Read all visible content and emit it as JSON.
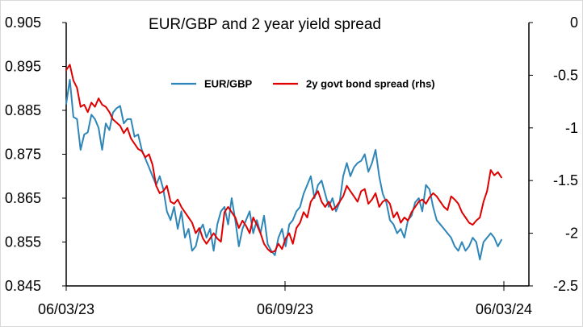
{
  "chart_data": {
    "type": "line",
    "title": "EUR/GBP and 2 year yield spread",
    "x_tick_labels": [
      "06/03/23",
      "06/09/23",
      "06/03/24"
    ],
    "x_range": [
      "06/03/23",
      "06/03/24"
    ],
    "y_left": {
      "range": [
        0.845,
        0.905
      ],
      "ticks": [
        "0.905",
        "0.895",
        "0.885",
        "0.875",
        "0.865",
        "0.855",
        "0.845"
      ]
    },
    "y_right": {
      "range": [
        -2.5,
        0
      ],
      "ticks": [
        "0",
        "-0.5",
        "-1",
        "-1.5",
        "-2",
        "-2.5"
      ]
    },
    "grid": false,
    "legend_position": "top",
    "series": [
      {
        "name": "EUR/GBP",
        "axis": "left",
        "color": "#2E86B8",
        "x": [
          0,
          3,
          6,
          9,
          12,
          15,
          18,
          21,
          24,
          27,
          30,
          33,
          36,
          39,
          42,
          45,
          48,
          51,
          54,
          57,
          60,
          63,
          66,
          69,
          72,
          75,
          78,
          81,
          84,
          87,
          90,
          93,
          96,
          99,
          102,
          105,
          108,
          111,
          114,
          117,
          120,
          123,
          126,
          129,
          132,
          135,
          138,
          141,
          144,
          147,
          150,
          153,
          156,
          159,
          162,
          165,
          168,
          171,
          174,
          177,
          180,
          183,
          186,
          189,
          192,
          195,
          198,
          201,
          204,
          207,
          210,
          213,
          216,
          219,
          222,
          225,
          228,
          231,
          234,
          237,
          240,
          243,
          246,
          249,
          252,
          255,
          258,
          261,
          264,
          267,
          270,
          273,
          276,
          279,
          282,
          285,
          288,
          291,
          294,
          297,
          300,
          303,
          306,
          309,
          312,
          315,
          318,
          321,
          324,
          327,
          330,
          333,
          336,
          339,
          342,
          345,
          348,
          351,
          354,
          357,
          360,
          363
        ],
        "values": [
          0.8865,
          0.892,
          0.8835,
          0.883,
          0.876,
          0.8795,
          0.88,
          0.884,
          0.883,
          0.881,
          0.876,
          0.882,
          0.8805,
          0.8845,
          0.8855,
          0.886,
          0.882,
          0.883,
          0.883,
          0.879,
          0.8795,
          0.876,
          0.874,
          0.872,
          0.87,
          0.868,
          0.87,
          0.867,
          0.862,
          0.86,
          0.863,
          0.858,
          0.862,
          0.856,
          0.858,
          0.853,
          0.854,
          0.8575,
          0.859,
          0.856,
          0.858,
          0.853,
          0.859,
          0.862,
          0.863,
          0.859,
          0.865,
          0.86,
          0.854,
          0.858,
          0.86,
          0.862,
          0.857,
          0.86,
          0.857,
          0.861,
          0.8545,
          0.853,
          0.852,
          0.856,
          0.858,
          0.854,
          0.859,
          0.86,
          0.862,
          0.863,
          0.866,
          0.868,
          0.87,
          0.865,
          0.868,
          0.869,
          0.866,
          0.863,
          0.865,
          0.862,
          0.864,
          0.87,
          0.873,
          0.87,
          0.872,
          0.873,
          0.8735,
          0.875,
          0.871,
          0.873,
          0.876,
          0.87,
          0.866,
          0.864,
          0.86,
          0.859,
          0.857,
          0.858,
          0.856,
          0.86,
          0.861,
          0.864,
          0.865,
          0.862,
          0.868,
          0.867,
          0.863,
          0.86,
          0.859,
          0.858,
          0.857,
          0.856,
          0.854,
          0.853,
          0.855,
          0.853,
          0.854,
          0.856,
          0.855,
          0.851,
          0.855,
          0.856,
          0.857,
          0.856,
          0.854,
          0.8555
        ]
      },
      {
        "name": "2y govt bond spread (rhs)",
        "axis": "right",
        "color": "#E00000",
        "x": [
          0,
          3,
          6,
          9,
          12,
          15,
          18,
          21,
          24,
          27,
          30,
          33,
          36,
          39,
          42,
          45,
          48,
          51,
          54,
          57,
          60,
          63,
          66,
          69,
          72,
          75,
          78,
          81,
          84,
          87,
          90,
          93,
          96,
          99,
          102,
          105,
          108,
          111,
          114,
          117,
          120,
          123,
          126,
          129,
          132,
          135,
          138,
          141,
          144,
          147,
          150,
          153,
          156,
          159,
          162,
          165,
          168,
          171,
          174,
          177,
          180,
          183,
          186,
          189,
          192,
          195,
          198,
          201,
          204,
          207,
          210,
          213,
          216,
          219,
          222,
          225,
          228,
          231,
          234,
          237,
          240,
          243,
          246,
          249,
          252,
          255,
          258,
          261,
          264,
          267,
          270,
          273,
          276,
          279,
          282,
          285,
          288,
          291,
          294,
          297,
          300,
          303,
          306,
          309,
          312,
          315,
          318,
          321,
          324,
          327,
          330,
          333,
          336,
          339,
          342,
          345,
          348,
          351,
          354,
          357,
          360,
          363
        ],
        "values": [
          -0.45,
          -0.4,
          -0.55,
          -0.62,
          -0.8,
          -0.78,
          -0.85,
          -0.76,
          -0.8,
          -0.72,
          -0.78,
          -0.8,
          -0.85,
          -0.92,
          -0.95,
          -0.98,
          -1.05,
          -1.0,
          -1.1,
          -1.15,
          -1.2,
          -1.22,
          -1.28,
          -1.25,
          -1.35,
          -1.55,
          -1.62,
          -1.6,
          -1.55,
          -1.7,
          -1.72,
          -1.68,
          -1.75,
          -1.8,
          -1.85,
          -1.9,
          -2.0,
          -1.95,
          -2.05,
          -2.1,
          -2.05,
          -2.0,
          -2.05,
          -2.08,
          -1.8,
          -1.75,
          -1.8,
          -1.85,
          -1.95,
          -1.88,
          -1.93,
          -2.0,
          -1.85,
          -1.92,
          -2.0,
          -2.1,
          -2.15,
          -2.18,
          -2.17,
          -2.1,
          -2.15,
          -2.05,
          -2.0,
          -2.1,
          -1.95,
          -1.9,
          -1.8,
          -1.85,
          -1.7,
          -1.65,
          -1.6,
          -1.7,
          -1.75,
          -1.7,
          -1.78,
          -1.75,
          -1.7,
          -1.65,
          -1.55,
          -1.6,
          -1.65,
          -1.7,
          -1.6,
          -1.58,
          -1.72,
          -1.68,
          -1.62,
          -1.75,
          -1.7,
          -1.68,
          -1.72,
          -1.85,
          -1.8,
          -1.9,
          -1.85,
          -1.88,
          -1.8,
          -1.75,
          -1.7,
          -1.68,
          -1.72,
          -1.66,
          -1.62,
          -1.65,
          -1.7,
          -1.75,
          -1.78,
          -1.65,
          -1.68,
          -1.72,
          -1.8,
          -1.85,
          -1.9,
          -1.92,
          -1.88,
          -1.85,
          -1.7,
          -1.6,
          -1.4,
          -1.45,
          -1.42,
          -1.47
        ]
      }
    ]
  }
}
